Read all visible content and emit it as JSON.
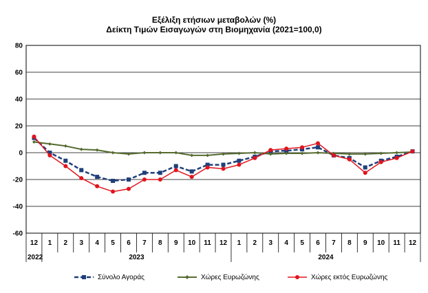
{
  "chart_data": {
    "type": "line",
    "title": "Εξέλιξη ετήσιων μεταβολών (%)",
    "subtitle": "Δείκτη Τιμών Εισαγωγών στη Βιομηχανία (2021=100,0)",
    "x_month_labels": [
      "12",
      "1",
      "2",
      "3",
      "4",
      "5",
      "6",
      "7",
      "8",
      "9",
      "10",
      "11",
      "12",
      "1",
      "2",
      "3",
      "4",
      "5",
      "6",
      "7",
      "8",
      "9",
      "10",
      "11",
      "12"
    ],
    "x_year_labels": [
      {
        "label": "2022"
      },
      {
        "label": "2023"
      },
      {
        "label": "2024"
      }
    ],
    "y_ticks": [
      80,
      60,
      40,
      20,
      0,
      -20,
      -40,
      -60
    ],
    "ylim": [
      -60,
      80
    ],
    "grid": true,
    "legend_position": "bottom",
    "series": [
      {
        "name": "Σύνολο Αγοράς",
        "color": "#1f3f7a",
        "style": "dashed-square",
        "values": [
          11,
          0,
          -6,
          -13,
          -18,
          -21,
          -20,
          -15,
          -15,
          -10,
          -14,
          -9,
          -9,
          -6,
          -3,
          1,
          1.5,
          2.5,
          4,
          -2,
          -4,
          -11,
          -6,
          -3,
          1
        ]
      },
      {
        "name": "Χώρες Ευρωζώνης",
        "color": "#556b2f",
        "style": "solid-diamond",
        "values": [
          8,
          6.5,
          5,
          2.5,
          2,
          0,
          -1,
          0,
          0,
          0,
          -2,
          -2,
          -1,
          -0.5,
          0,
          -1,
          -0.5,
          -0.5,
          0,
          -0.5,
          -1,
          -1,
          -0.5,
          0,
          0.5
        ]
      },
      {
        "name": "Χώρες εκτός Ευρωζώνης",
        "color": "#e0141e",
        "style": "solid-circle",
        "values": [
          12,
          -2,
          -10,
          -19,
          -25,
          -29,
          -27,
          -20,
          -20,
          -13,
          -18,
          -11,
          -12,
          -9,
          -4,
          2,
          3,
          4,
          7,
          -2,
          -5,
          -15,
          -7,
          -4,
          1
        ]
      }
    ]
  }
}
